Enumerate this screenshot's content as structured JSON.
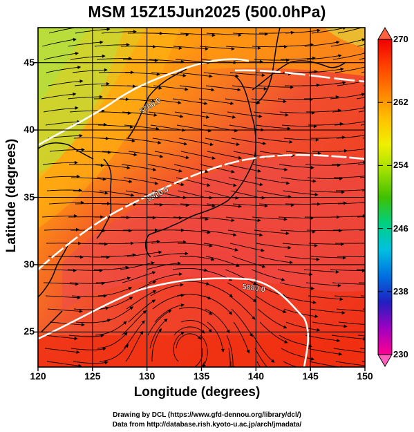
{
  "title": "MSM 15Z15Jun2025 (500.0hPa)",
  "xlabel": "Longitude (degrees)",
  "ylabel": "Latitude  (degrees)",
  "credits": {
    "line1": "Drawing by DCL (https://www.gfd-dennou.org/library/dcl/)",
    "line2": "Data from http://database.rish.kyoto-u.ac.jp/arch/jmadata/"
  },
  "axes": {
    "x_ticks": [
      "120",
      "125",
      "130",
      "135",
      "140",
      "145",
      "150"
    ],
    "y_ticks": [
      "25",
      "30",
      "35",
      "40",
      "45"
    ],
    "xlim": [
      120,
      150
    ],
    "ylim": [
      22.4,
      47.6
    ]
  },
  "colorbar": {
    "min": 230,
    "max": 270,
    "labels": [
      "270",
      "262",
      "254",
      "246",
      "238",
      "230"
    ],
    "label_values": [
      270,
      262,
      254,
      246,
      238,
      230
    ],
    "colors": [
      "#ff0090",
      "#a000c0",
      "#2020c0",
      "#0070e0",
      "#00c0e0",
      "#00d080",
      "#40c000",
      "#a0e000",
      "#f0f000",
      "#ffc000",
      "#ff8000",
      "#ff4000",
      "#f00000"
    ]
  },
  "contour_labels": [
    "5700.0",
    "5820.0",
    "5880.0"
  ],
  "field": {
    "variable": "temperature",
    "units": "K"
  }
}
